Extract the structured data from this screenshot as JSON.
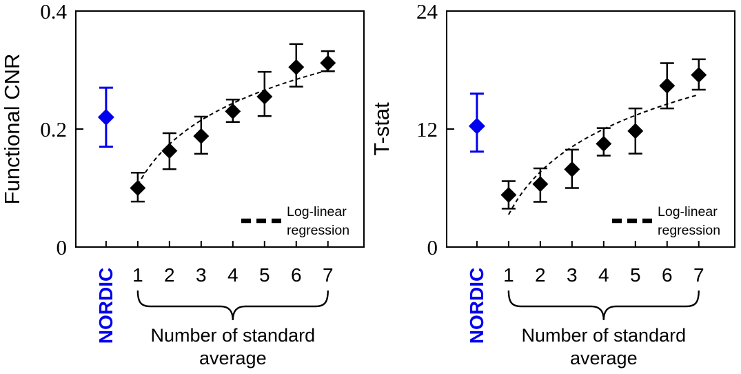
{
  "figure": {
    "background": "#ffffff",
    "black": "#000000",
    "accent_blue": "#0000ee"
  },
  "chart_data": [
    {
      "type": "scatter",
      "panel": "left",
      "ylabel": "Functional CNR",
      "xlabel": "Number of standard average",
      "xlabel_lines": [
        "Number of standard",
        "average"
      ],
      "nordic_label": "NORDIC",
      "ylim": [
        0,
        0.4
      ],
      "yticks": [
        0,
        0.2,
        0.4
      ],
      "ytick_labels": [
        "0",
        "0.2",
        "0.4"
      ],
      "categories": [
        "NORDIC",
        "1",
        "2",
        "3",
        "4",
        "5",
        "6",
        "7"
      ],
      "series": [
        {
          "name": "NORDIC",
          "color": "#0000ee",
          "points": [
            {
              "x": "NORDIC",
              "y": 0.22,
              "y_lo": 0.17,
              "y_hi": 0.27
            }
          ]
        },
        {
          "name": "Standard average",
          "color": "#000000",
          "points": [
            {
              "x": "1",
              "y": 0.1,
              "y_lo": 0.077,
              "y_hi": 0.126
            },
            {
              "x": "2",
              "y": 0.163,
              "y_lo": 0.132,
              "y_hi": 0.193
            },
            {
              "x": "3",
              "y": 0.188,
              "y_lo": 0.158,
              "y_hi": 0.221
            },
            {
              "x": "4",
              "y": 0.23,
              "y_lo": 0.212,
              "y_hi": 0.25
            },
            {
              "x": "5",
              "y": 0.255,
              "y_lo": 0.222,
              "y_hi": 0.297
            },
            {
              "x": "6",
              "y": 0.305,
              "y_lo": 0.272,
              "y_hi": 0.344
            },
            {
              "x": "7",
              "y": 0.312,
              "y_lo": 0.298,
              "y_hi": 0.332
            }
          ]
        }
      ],
      "regression": {
        "label_lines": [
          "Log-linear",
          "regression"
        ],
        "label": "Log-linear regression",
        "model": "y = a + b*ln(x)",
        "a": 0.105,
        "b": 0.1,
        "x_range": [
          1,
          7
        ]
      }
    },
    {
      "type": "scatter",
      "panel": "right",
      "ylabel": "T-stat",
      "xlabel": "Number of standard average",
      "xlabel_lines": [
        "Number of standard",
        "average"
      ],
      "nordic_label": "NORDIC",
      "ylim": [
        0,
        24
      ],
      "yticks": [
        0,
        12,
        24
      ],
      "ytick_labels": [
        "0",
        "12",
        "24"
      ],
      "categories": [
        "NORDIC",
        "1",
        "2",
        "3",
        "4",
        "5",
        "6",
        "7"
      ],
      "series": [
        {
          "name": "NORDIC",
          "color": "#0000ee",
          "points": [
            {
              "x": "NORDIC",
              "y": 12.3,
              "y_lo": 9.7,
              "y_hi": 15.6
            }
          ]
        },
        {
          "name": "Standard average",
          "color": "#000000",
          "points": [
            {
              "x": "1",
              "y": 5.3,
              "y_lo": 3.9,
              "y_hi": 6.7
            },
            {
              "x": "2",
              "y": 6.4,
              "y_lo": 4.6,
              "y_hi": 8.0
            },
            {
              "x": "3",
              "y": 7.9,
              "y_lo": 6.0,
              "y_hi": 9.9
            },
            {
              "x": "4",
              "y": 10.5,
              "y_lo": 9.3,
              "y_hi": 12.1
            },
            {
              "x": "5",
              "y": 11.8,
              "y_lo": 9.5,
              "y_hi": 14.1
            },
            {
              "x": "6",
              "y": 16.4,
              "y_lo": 14.1,
              "y_hi": 18.7
            },
            {
              "x": "7",
              "y": 17.5,
              "y_lo": 16.0,
              "y_hi": 19.1
            }
          ]
        }
      ],
      "regression": {
        "label_lines": [
          "Log-linear",
          "regression"
        ],
        "label": "Log-linear regression",
        "model": "y = a + b*ln(x)",
        "a": 3.3,
        "b": 6.27,
        "x_range": [
          1,
          7
        ]
      }
    }
  ]
}
